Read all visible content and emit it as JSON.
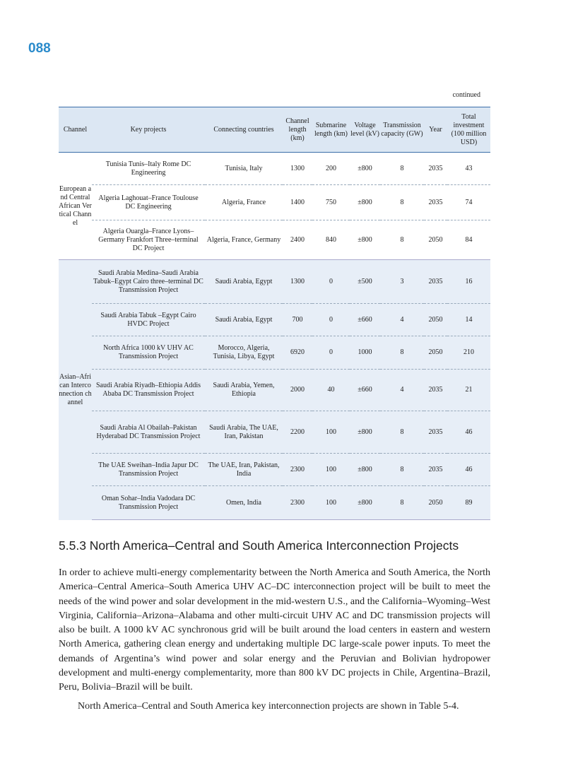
{
  "page_number": "088",
  "continued": "continued",
  "table": {
    "headers": [
      "Channel",
      "Key projects",
      "Connecting countries",
      "Channel length (km)",
      "Submarine length (km)",
      "Voltage level (kV)",
      "Transmission capacity (GW)",
      "Year",
      "Total investment (100 million USD)"
    ],
    "groups": [
      {
        "channel": "European and Central African Vertical Channel",
        "rows": [
          [
            "Tunisia Tunis–Italy Rome DC Engineering",
            "Tunisia, Italy",
            "1300",
            "200",
            "±800",
            "8",
            "2035",
            "43"
          ],
          [
            "Algeria Laghouat–France Toulouse DC Engineering",
            "Algeria, France",
            "1400",
            "750",
            "±800",
            "8",
            "2035",
            "74"
          ],
          [
            "Algeria Ouargla–France Lyons–Germany Frankfort Three–terminal DC Project",
            "Algeria, France, Germany",
            "2400",
            "840",
            "±800",
            "8",
            "2050",
            "84"
          ]
        ]
      },
      {
        "channel": "Asian–African Interconnection channel",
        "rows": [
          [
            "Saudi Arabia Medina–Saudi Arabia Tabuk–Egypt Cairo three–terminal DC Transmission Project",
            "Saudi Arabia, Egypt",
            "1300",
            "0",
            "±500",
            "3",
            "2035",
            "16"
          ],
          [
            "Saudi Arabia Tabuk –Egypt Cairo HVDC Project",
            "Saudi Arabia, Egypt",
            "700",
            "0",
            "±660",
            "4",
            "2050",
            "14"
          ],
          [
            "North Africa 1000 kV UHV AC Transmission Project",
            "Morocco, Algeria, Tunisia, Libya, Egypt",
            "6920",
            "0",
            "1000",
            "8",
            "2050",
            "210"
          ],
          [
            "Saudi Arabia Riyadh–Ethiopia Addis Ababa DC Transmission Project",
            "Saudi Arabia, Yemen, Ethiopia",
            "2000",
            "40",
            "±660",
            "4",
            "2035",
            "21"
          ],
          [
            "Saudi Arabia Al Obailah–Pakistan Hyderabad DC Transmission Project",
            "Saudi Arabia, The UAE, Iran, Pakistan",
            "2200",
            "100",
            "±800",
            "8",
            "2035",
            "46"
          ],
          [
            "The UAE Sweihan–India Japur DC Transmission Project",
            "The UAE, Iran, Pakistan, India",
            "2300",
            "100",
            "±800",
            "8",
            "2035",
            "46"
          ],
          [
            "Oman Sohar–India Vadodara DC Transmission Project",
            "Omen, India",
            "2300",
            "100",
            "±800",
            "8",
            "2050",
            "89"
          ]
        ]
      }
    ]
  },
  "section": {
    "heading": "5.5.3   North America–Central and South America Interconnection Projects",
    "paragraph1": "In order to achieve multi-energy complementarity between the North America and South America, the North America–Central America–South America UHV AC–DC interconnection project will be built to meet the needs of the wind power and solar development in the mid-western U.S., and the California–Wyoming–West Virginia, California–Arizona–Alabama and other multi-circuit UHV AC and DC transmission projects will also be built. A 1000 kV AC synchronous grid will be built around the load centers in eastern and western North America, gathering clean energy and undertaking multiple DC large-scale power inputs. To meet the demands of Argentina’s wind power and solar energy and the Peruvian and Bolivian hydropower development and multi-energy complementarity, more than 800 kV DC projects in Chile, Argentina–Brazil, Peru, Bolivia–Brazil will be built.",
    "paragraph2": "North America–Central and South America key interconnection projects are shown in Table 5-4."
  }
}
